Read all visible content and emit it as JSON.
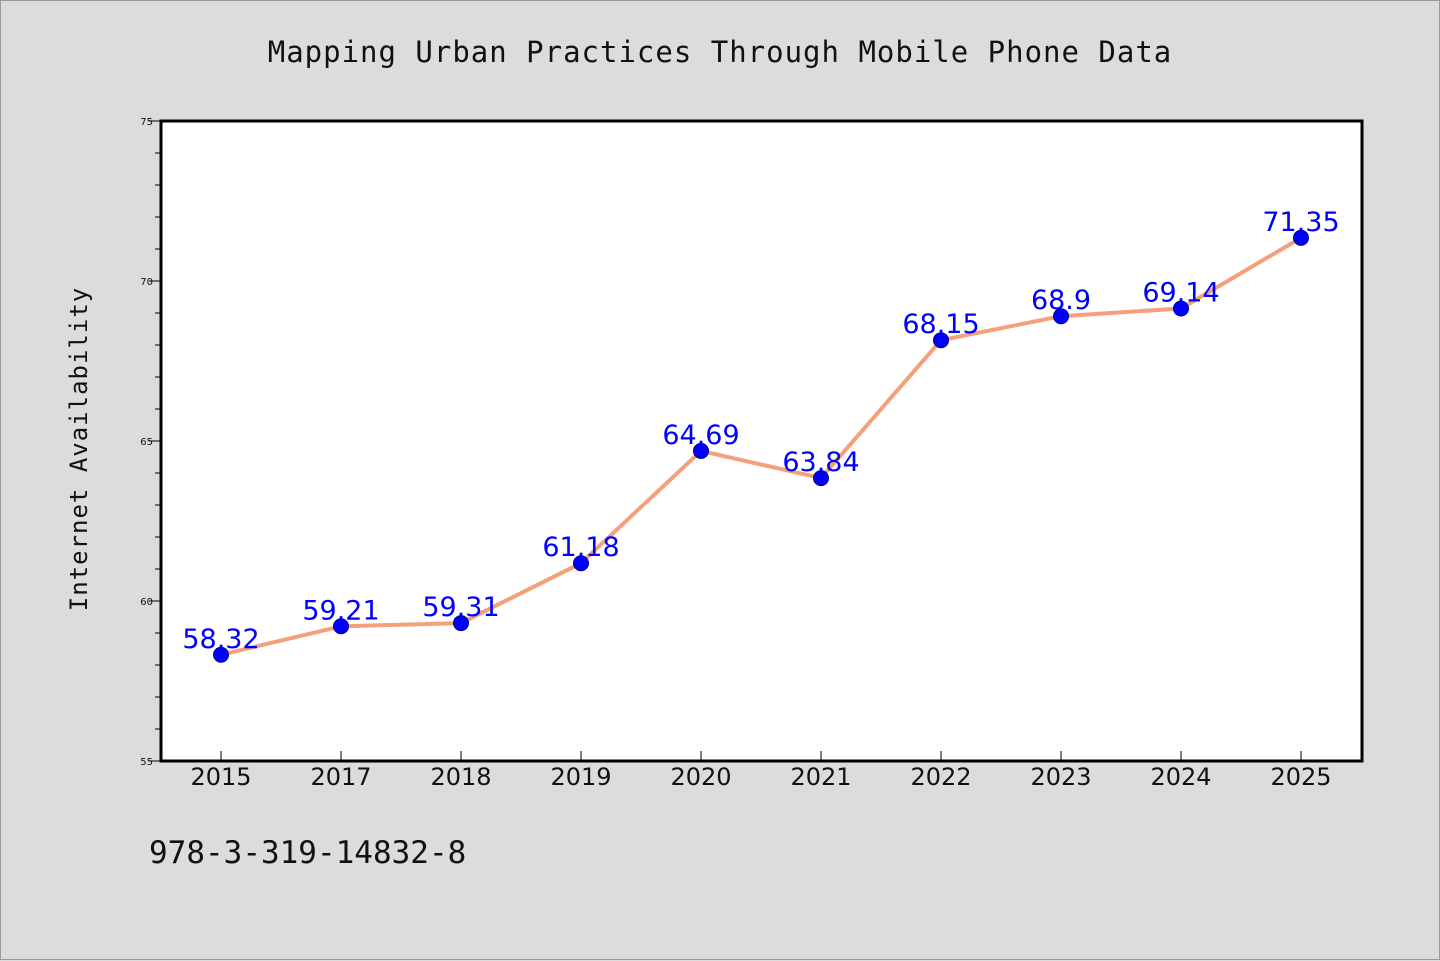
{
  "colors": {
    "background": "#dcdcdc",
    "plot_background": "#ffffff",
    "line": "#f4a07a",
    "marker": "#0000ff",
    "data_label": "#0000ff",
    "axis": "#000000"
  },
  "footer": {
    "code": "978-3-319-14832-8"
  },
  "chart_data": {
    "type": "line",
    "title": "Mapping Urban Practices Through Mobile Phone Data",
    "xlabel": "",
    "ylabel": "Internet Availability",
    "categories": [
      "2015",
      "2017",
      "2018",
      "2019",
      "2020",
      "2021",
      "2022",
      "2023",
      "2024",
      "2025"
    ],
    "series": [
      {
        "values": [
          58.32,
          59.21,
          59.31,
          61.18,
          64.69,
          63.84,
          68.15,
          68.9,
          69.14,
          71.35
        ]
      }
    ],
    "data_labels": [
      "58.32",
      "59.21",
      "59.31",
      "61.18",
      "64.69",
      "63.84",
      "68.15",
      "68.9",
      "69.14",
      "71.35"
    ],
    "ylim": [
      55,
      75
    ],
    "yticks": [
      55,
      60,
      65,
      70,
      75
    ],
    "ytick_labels": [
      "55",
      "60",
      "65",
      "70",
      "75"
    ],
    "grid": false,
    "legend": "none"
  }
}
